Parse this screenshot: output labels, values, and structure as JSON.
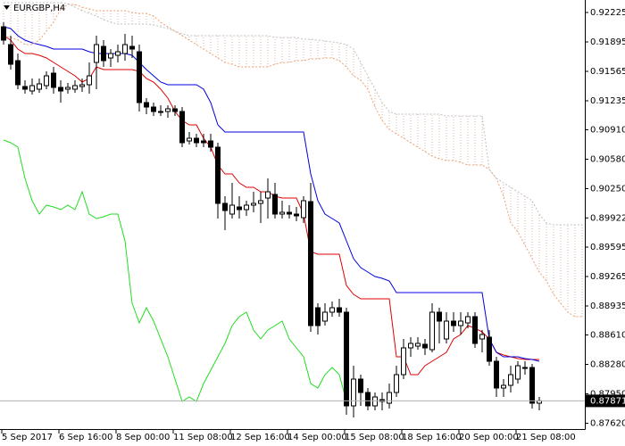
{
  "chart_data": {
    "type": "candlestick",
    "title": "EURGBP,H4",
    "categories": [
      "5 Sep 2017",
      null,
      null,
      null,
      null,
      null,
      null,
      null,
      "6 Sep 16:00",
      null,
      null,
      null,
      null,
      null,
      null,
      null,
      "8 Sep 00:00",
      null,
      null,
      null,
      null,
      null,
      null,
      null,
      "11 Sep 08:00",
      null,
      null,
      null,
      null,
      null,
      null,
      null,
      "12 Sep 16:00",
      null,
      null,
      null,
      null,
      null,
      null,
      null,
      "14 Sep 00:00",
      null,
      null,
      null,
      null,
      null,
      null,
      null,
      "15 Sep 08:00",
      null,
      null,
      null,
      null,
      null,
      null,
      null,
      "18 Sep 16:00",
      null,
      null,
      null,
      null,
      null,
      null,
      null,
      "20 Sep 00:00",
      null,
      null,
      null,
      null,
      null,
      null,
      null,
      "21 Sep 08:00",
      null,
      null,
      null,
      null,
      null,
      null,
      null,
      null,
      null
    ],
    "open": [
      0.92065,
      0.91865,
      0.91685,
      0.91395,
      0.91345,
      0.91365,
      0.91405,
      0.91545,
      0.91385,
      0.91365,
      0.91365,
      0.91395,
      0.91415,
      0.91665,
      0.91845,
      0.91715,
      0.91745,
      0.91765,
      0.91845,
      0.91785,
      0.91215,
      0.91165,
      0.91115,
      0.91115,
      0.91145,
      0.91115,
      0.90785,
      0.90815,
      0.90785,
      0.90785,
      0.90715,
      0.90085,
      0.89965,
      0.90045,
      0.90015,
      0.90065,
      0.90085,
      0.90145,
      0.90185,
      0.89965,
      0.89985,
      0.89965,
      0.89925,
      0.90105,
      0.88915,
      0.88765,
      0.88865,
      0.88915,
      0.88865,
      0.87815,
      0.88115,
      0.87965,
      0.87815,
      0.87885,
      0.87845,
      0.87965,
      0.88165,
      0.88465,
      0.88485,
      0.88505,
      0.88445,
      0.88865,
      0.88565,
      0.88765,
      0.88715,
      0.88745,
      0.88815,
      0.88565,
      0.88585,
      0.88315,
      0.88015,
      0.88045,
      0.88115,
      0.88245,
      0.88245,
      0.87845,
      null,
      null,
      null,
      null,
      null,
      null
    ],
    "high": [
      0.92115,
      0.91965,
      0.91765,
      0.91465,
      0.91485,
      0.91485,
      0.91565,
      0.91615,
      0.91465,
      0.91435,
      0.91465,
      0.91485,
      0.91665,
      0.91965,
      0.91915,
      0.91815,
      0.91865,
      0.91985,
      0.91965,
      0.91865,
      0.91265,
      0.91215,
      0.91185,
      0.91185,
      0.91185,
      0.91165,
      0.90885,
      0.90865,
      0.90865,
      0.90865,
      0.90765,
      0.90165,
      0.90315,
      0.90165,
      0.90115,
      0.90215,
      0.90215,
      0.90365,
      0.90315,
      0.90115,
      0.90065,
      0.90045,
      0.90165,
      0.90315,
      0.88965,
      0.88965,
      0.88985,
      0.89015,
      0.88915,
      0.88265,
      0.88165,
      0.88015,
      0.87965,
      0.87965,
      0.88065,
      0.88265,
      0.88565,
      0.88585,
      0.88585,
      0.88565,
      0.88965,
      0.88915,
      0.88865,
      0.88865,
      0.88865,
      0.88865,
      0.88865,
      0.88665,
      0.88665,
      0.88365,
      0.88115,
      0.88265,
      0.88315,
      0.88315,
      0.88285,
      0.87915,
      null,
      null,
      null,
      null,
      null,
      null
    ],
    "low": [
      0.91865,
      0.91585,
      0.91365,
      0.91315,
      0.91305,
      0.91325,
      0.91365,
      0.91315,
      0.91215,
      0.91315,
      0.91325,
      0.91335,
      0.91315,
      0.91365,
      0.91615,
      0.91615,
      0.91665,
      0.91685,
      0.91715,
      0.91115,
      0.91085,
      0.91065,
      0.91065,
      0.91045,
      0.91065,
      0.90715,
      0.90745,
      0.90715,
      0.90715,
      0.90665,
      0.89915,
      0.89785,
      0.89915,
      0.89915,
      0.89945,
      0.89985,
      0.89865,
      0.89915,
      0.89915,
      0.89915,
      0.89915,
      0.89885,
      0.89865,
      0.88645,
      0.88615,
      0.88715,
      0.88815,
      0.88815,
      0.87715,
      0.87685,
      0.87815,
      0.87765,
      0.87765,
      0.87765,
      0.87785,
      0.87915,
      0.88115,
      0.88365,
      0.88445,
      0.88385,
      0.88415,
      0.88515,
      0.88515,
      0.88645,
      0.88615,
      0.88685,
      0.88465,
      0.88415,
      0.88265,
      0.87915,
      0.87915,
      0.87965,
      0.88065,
      0.88165,
      0.87785,
      0.87765,
      null,
      null,
      null,
      null,
      null,
      null
    ],
    "close": [
      0.91915,
      0.91645,
      0.91415,
      0.91365,
      0.91405,
      0.91425,
      0.91515,
      0.91385,
      0.91345,
      0.91385,
      0.91405,
      0.91415,
      0.91515,
      0.91865,
      0.91685,
      0.91765,
      0.91785,
      0.91865,
      0.91815,
      0.91215,
      0.91165,
      0.91115,
      0.91115,
      0.91145,
      0.91115,
      0.90765,
      0.90815,
      0.90765,
      0.90765,
      0.90715,
      0.90085,
      0.90005,
      0.90065,
      0.90015,
      0.90065,
      0.90085,
      0.90115,
      0.90215,
      0.89965,
      0.89985,
      0.89965,
      0.89945,
      0.90115,
      0.88715,
      0.88715,
      0.88865,
      0.88915,
      0.88865,
      0.87815,
      0.88115,
      0.87965,
      0.87815,
      0.87915,
      0.87865,
      0.87965,
      0.88165,
      0.88465,
      0.88515,
      0.88515,
      0.88465,
      0.88865,
      0.88765,
      0.88765,
      0.88715,
      0.88765,
      0.88815,
      0.88515,
      0.88615,
      0.88315,
      0.88015,
      0.88045,
      0.88165,
      0.88265,
      0.88245,
      0.87845,
      0.87871,
      null,
      null,
      null,
      null,
      null,
      null
    ],
    "bull_color": "#ffffff",
    "bear_color": "#000000",
    "series": [
      {
        "color": "#e00000",
        "values": [
          0.91965,
          0.91915,
          0.91815,
          0.91765,
          0.91765,
          0.91745,
          0.91715,
          0.91665,
          0.91615,
          0.91565,
          0.91515,
          0.91445,
          0.91485,
          0.91615,
          0.91585,
          0.91585,
          0.91585,
          0.91585,
          0.91585,
          0.91565,
          0.91485,
          0.91445,
          0.91365,
          0.91265,
          0.91115,
          0.91015,
          0.90965,
          0.90965,
          0.90815,
          0.90715,
          0.90515,
          0.90415,
          0.90415,
          0.90315,
          0.90265,
          0.90265,
          0.90215,
          0.90215,
          0.90165,
          0.90145,
          0.90145,
          0.90145,
          0.89965,
          0.89545,
          0.89515,
          0.89515,
          0.89515,
          0.89515,
          0.89165,
          0.89065,
          0.89015,
          0.89015,
          0.89015,
          0.89015,
          0.89015,
          0.88365,
          0.88365,
          0.88165,
          0.88165,
          0.88265,
          0.88315,
          0.88365,
          0.88415,
          0.88565,
          0.88615,
          0.88715,
          0.88685,
          0.88645,
          0.88565,
          0.88415,
          0.88385,
          0.88365,
          0.88345,
          0.88335,
          0.88335,
          0.88335,
          null,
          null,
          null,
          null,
          null,
          null
        ]
      },
      {
        "color": "#0000e0",
        "values": [
          0.92065,
          0.92045,
          0.91965,
          0.91915,
          0.91885,
          0.91865,
          0.91845,
          0.91815,
          0.91815,
          0.91815,
          0.91815,
          0.91815,
          0.91785,
          0.91765,
          0.91765,
          0.91765,
          0.91765,
          0.91765,
          0.91745,
          0.91665,
          0.91585,
          0.91515,
          0.91445,
          0.91415,
          0.91415,
          0.91415,
          0.91415,
          0.91415,
          0.91365,
          0.91215,
          0.90965,
          0.90885,
          0.90885,
          0.90885,
          0.90885,
          0.90885,
          0.90885,
          0.90885,
          0.90885,
          0.90885,
          0.90885,
          0.90885,
          0.90885,
          0.90415,
          0.90115,
          0.89965,
          0.89915,
          0.89865,
          0.89665,
          0.89465,
          0.89365,
          0.89315,
          0.89265,
          0.89245,
          0.89215,
          0.89085,
          0.89085,
          0.89085,
          0.89085,
          0.89085,
          0.89085,
          0.89085,
          0.89085,
          0.89085,
          0.89085,
          0.89085,
          0.89085,
          0.89085,
          0.88565,
          0.88415,
          0.88365,
          0.88365,
          0.88365,
          0.88345,
          0.88335,
          0.88315,
          null,
          null,
          null,
          null,
          null,
          null
        ]
      },
      {
        "color": "#22dd22",
        "values": [
          0.90795,
          0.90765,
          0.90715,
          0.90365,
          0.90115,
          0.89965,
          0.90065,
          0.90045,
          0.90015,
          0.90065,
          0.90015,
          0.90215,
          0.89965,
          0.89915,
          0.89935,
          0.89965,
          0.89965,
          0.89665,
          0.88965,
          0.88745,
          0.88915,
          0.88765,
          0.88565,
          0.88365,
          0.88115,
          0.87865,
          0.87915,
          0.87865,
          0.88065,
          0.88215,
          0.88365,
          0.88515,
          0.88715,
          0.88815,
          0.88865,
          0.88665,
          0.88565,
          0.88665,
          0.88715,
          0.88765,
          0.88565,
          0.88465,
          0.88365,
          0.88065,
          0.88015,
          0.88165,
          0.88245,
          0.88165,
          0.87865,
          null,
          null,
          null,
          null,
          null,
          null,
          null,
          null,
          null,
          null,
          null,
          null,
          null,
          null,
          null,
          null,
          null,
          null,
          null,
          null,
          null,
          null,
          null,
          null,
          null,
          null,
          null,
          null,
          null,
          null,
          null,
          null,
          null
        ]
      },
      {
        "color": "#f0a070",
        "line_style": "dotted",
        "values": [
          0.91965,
          0.91945,
          0.91915,
          0.91865,
          0.91865,
          0.91915,
          0.92015,
          0.92115,
          0.92265,
          0.92315,
          0.92315,
          0.92285,
          0.92265,
          0.92245,
          0.92245,
          0.92245,
          0.92245,
          0.92245,
          0.92225,
          0.92215,
          0.92215,
          0.92185,
          0.92115,
          0.92065,
          0.92015,
          0.91965,
          0.91915,
          0.91865,
          0.91815,
          0.91765,
          0.91715,
          0.91665,
          0.91645,
          0.91615,
          0.91615,
          0.91615,
          0.91615,
          0.91615,
          0.91645,
          0.91665,
          0.91665,
          0.91685,
          0.91685,
          0.91705,
          0.91705,
          0.91715,
          0.91715,
          0.91685,
          0.91615,
          0.91515,
          0.91465,
          0.91365,
          0.91165,
          0.91015,
          0.90915,
          0.90865,
          0.90815,
          0.90765,
          0.90715,
          0.90665,
          0.90615,
          0.90585,
          0.90565,
          0.90565,
          0.90545,
          0.90515,
          0.90515,
          0.90515,
          0.90465,
          0.90365,
          0.90165,
          0.89865,
          0.89765,
          0.89615,
          0.89465,
          0.89315,
          0.89215,
          0.89065,
          0.88965,
          0.88865,
          0.88815,
          0.88815
        ]
      },
      {
        "color": "#c0c0c0",
        "line_style": "dotted",
        "values": [
          0.92335,
          0.92335,
          0.92335,
          0.92335,
          0.92335,
          0.92335,
          0.92335,
          0.92335,
          0.92335,
          0.92325,
          0.92285,
          0.92245,
          0.92215,
          0.92185,
          0.92145,
          0.92115,
          0.92095,
          0.92095,
          0.92095,
          0.92095,
          0.92095,
          0.92085,
          0.92065,
          0.92045,
          0.92015,
          0.91985,
          0.91965,
          0.91965,
          0.91965,
          0.91965,
          0.91965,
          0.91965,
          0.91965,
          0.91965,
          0.91965,
          0.91965,
          0.91965,
          0.91965,
          0.91945,
          0.91945,
          0.91945,
          0.91945,
          0.91925,
          0.91925,
          0.91915,
          0.91905,
          0.91895,
          0.91885,
          0.91865,
          0.91815,
          0.91665,
          0.91515,
          0.91365,
          0.91215,
          0.91115,
          0.91085,
          0.91085,
          0.91085,
          0.91085,
          0.91085,
          0.91085,
          0.91085,
          0.91065,
          0.91065,
          0.91065,
          0.91065,
          0.91065,
          0.91065,
          0.90465,
          0.90365,
          0.90315,
          0.90265,
          0.90215,
          0.90165,
          0.90115,
          0.89965,
          0.89865,
          0.89845,
          0.89845,
          0.89845,
          0.89845,
          0.89845
        ]
      }
    ],
    "cloud_color": "#d8b8a8",
    "last_price": 0.87871,
    "ylim": [
      0.87555,
      0.92365
    ],
    "yticks": [
      0.92225,
      0.91895,
      0.91565,
      0.91235,
      {
        "value": 0.9091,
        "label": "0.90910"
      },
      {
        "value": 0.9058,
        "label": "0.90580"
      },
      {
        "value": 0.9025,
        "label": "0.90250"
      },
      0.89922,
      0.89595,
      0.89265,
      0.88935,
      {
        "value": 0.8861,
        "label": "0.88610"
      },
      {
        "value": 0.8828,
        "label": "0.88280"
      },
      {
        "value": 0.8795,
        "label": "0.87950"
      },
      {
        "value": 0.8762,
        "label": "0.87620"
      }
    ]
  }
}
